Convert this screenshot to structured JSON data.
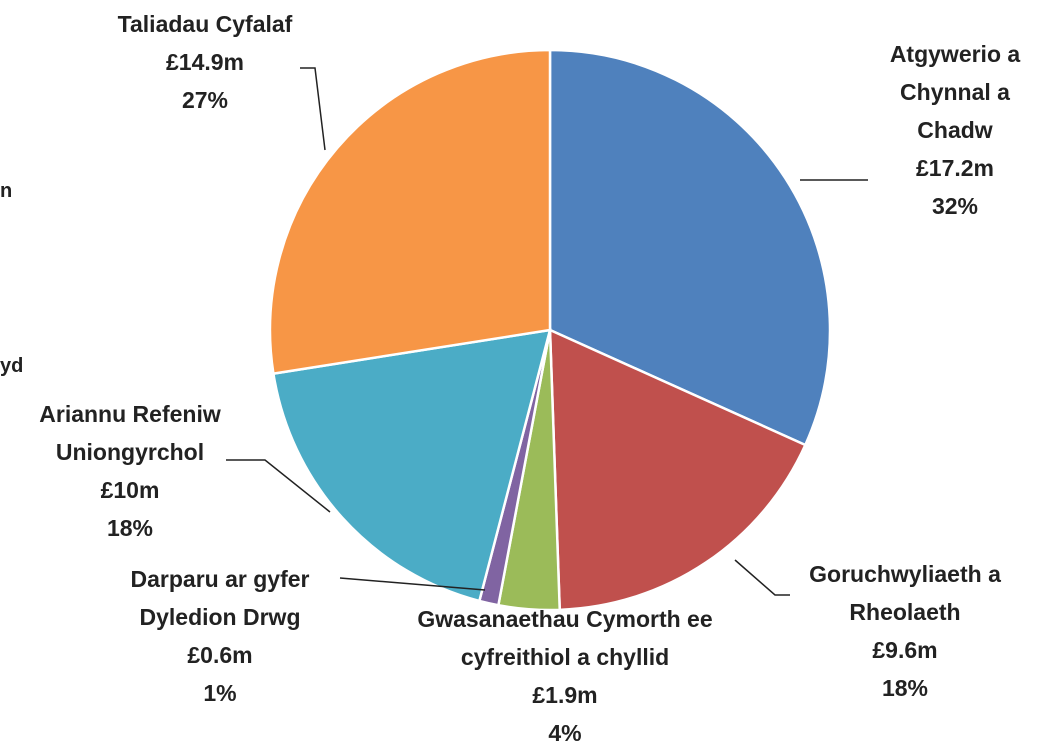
{
  "chart_data": {
    "type": "pie",
    "categories": [
      "Atgywerio a Chynnal a Chadw",
      "Goruchwyliaeth a Rheolaeth",
      "Gwasanaethau Cymorth ee cyfreithiol a chyllid",
      "Darparu ar gyfer Dyledion Drwg",
      "Ariannu Refeniw Uniongyrchol",
      "Taliadau Cyfalaf"
    ],
    "values": [
      17.2,
      9.6,
      1.9,
      0.6,
      10,
      14.9
    ],
    "value_labels": [
      "£17.2m",
      "£9.6m",
      "£1.9m",
      "£0.6m",
      "£10m",
      "£14.9m"
    ],
    "percent_labels": [
      "32%",
      "18%",
      "4%",
      "1%",
      "18%",
      "27%"
    ],
    "colors": [
      "#4f81bd",
      "#c0504d",
      "#9bbb59",
      "#8064a2",
      "#4bacc6",
      "#f79646"
    ],
    "annotations": [
      "n",
      "yd"
    ]
  }
}
